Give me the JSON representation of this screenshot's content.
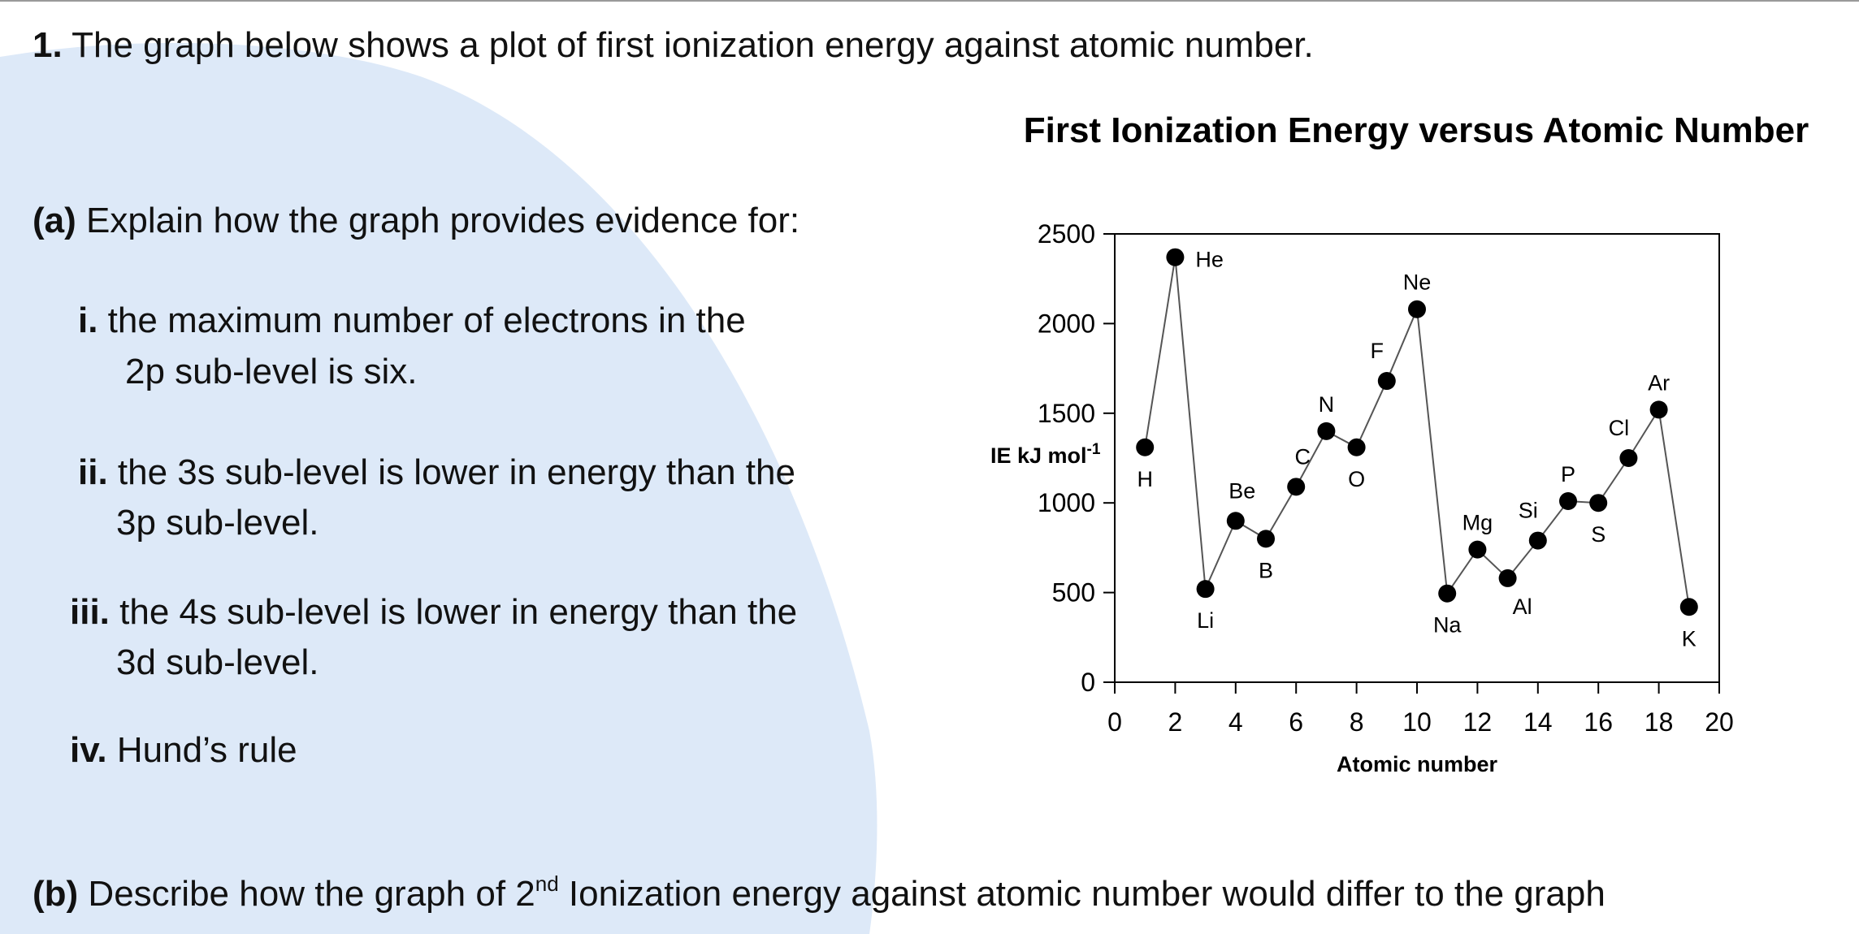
{
  "question": {
    "number": "1.",
    "intro": " The graph below shows a plot of first ionization energy against atomic number.",
    "part_a": {
      "label": "(a)",
      "text": " Explain how the graph provides evidence for:",
      "items": [
        {
          "num": "i.",
          "line1": " the maximum number of electrons in the",
          "line2": "2p sub-level is six."
        },
        {
          "num": "ii.",
          "line1": " the 3s sub-level is lower in energy than the",
          "line2": "3p sub-level."
        },
        {
          "num": "iii.",
          "line1": " the 4s sub-level is lower in energy than the",
          "line2": "3d sub-level."
        },
        {
          "num": "iv.",
          "line1": " Hund’s rule",
          "line2": ""
        }
      ]
    },
    "part_b": {
      "label": "(b)",
      "text_before": " Describe how the graph of 2",
      "sup": "nd",
      "text_after": " Ionization energy against atomic number would differ to the graph"
    }
  },
  "colors": {
    "background_shape": "#dde9f8",
    "point": "#000000",
    "line": "#555555"
  },
  "chart_data": {
    "type": "line",
    "title": "First Ionization Energy versus Atomic Number",
    "xlabel": "Atomic number",
    "ylabel": "IE  kJ mol",
    "ylabel_sup": "-1",
    "xlim": [
      0,
      20
    ],
    "ylim": [
      0,
      2500
    ],
    "xticks": [
      0,
      2,
      4,
      6,
      8,
      10,
      12,
      14,
      16,
      18,
      20
    ],
    "yticks": [
      0,
      500,
      1000,
      1500,
      2000,
      2500
    ],
    "grid": false,
    "points": [
      {
        "x": 1,
        "y": 1310,
        "label": "H",
        "pos": "below"
      },
      {
        "x": 2,
        "y": 2370,
        "label": "He",
        "pos": "right"
      },
      {
        "x": 3,
        "y": 520,
        "label": "Li",
        "pos": "below"
      },
      {
        "x": 4,
        "y": 900,
        "label": "Be",
        "pos": "above-right"
      },
      {
        "x": 5,
        "y": 800,
        "label": "B",
        "pos": "below"
      },
      {
        "x": 6,
        "y": 1090,
        "label": "C",
        "pos": "above-right"
      },
      {
        "x": 7,
        "y": 1400,
        "label": "N",
        "pos": "above"
      },
      {
        "x": 8,
        "y": 1310,
        "label": "O",
        "pos": "below"
      },
      {
        "x": 9,
        "y": 1680,
        "label": "F",
        "pos": "above-left"
      },
      {
        "x": 10,
        "y": 2080,
        "label": "Ne",
        "pos": "above"
      },
      {
        "x": 11,
        "y": 495,
        "label": "Na",
        "pos": "below"
      },
      {
        "x": 12,
        "y": 740,
        "label": "Mg",
        "pos": "above"
      },
      {
        "x": 13,
        "y": 580,
        "label": "Al",
        "pos": "below-right"
      },
      {
        "x": 14,
        "y": 790,
        "label": "Si",
        "pos": "above-left"
      },
      {
        "x": 15,
        "y": 1010,
        "label": "P",
        "pos": "above"
      },
      {
        "x": 16,
        "y": 1000,
        "label": "S",
        "pos": "below"
      },
      {
        "x": 17,
        "y": 1250,
        "label": "Cl",
        "pos": "above-left"
      },
      {
        "x": 18,
        "y": 1520,
        "label": "Ar",
        "pos": "above"
      },
      {
        "x": 19,
        "y": 420,
        "label": "K",
        "pos": "below"
      }
    ]
  }
}
